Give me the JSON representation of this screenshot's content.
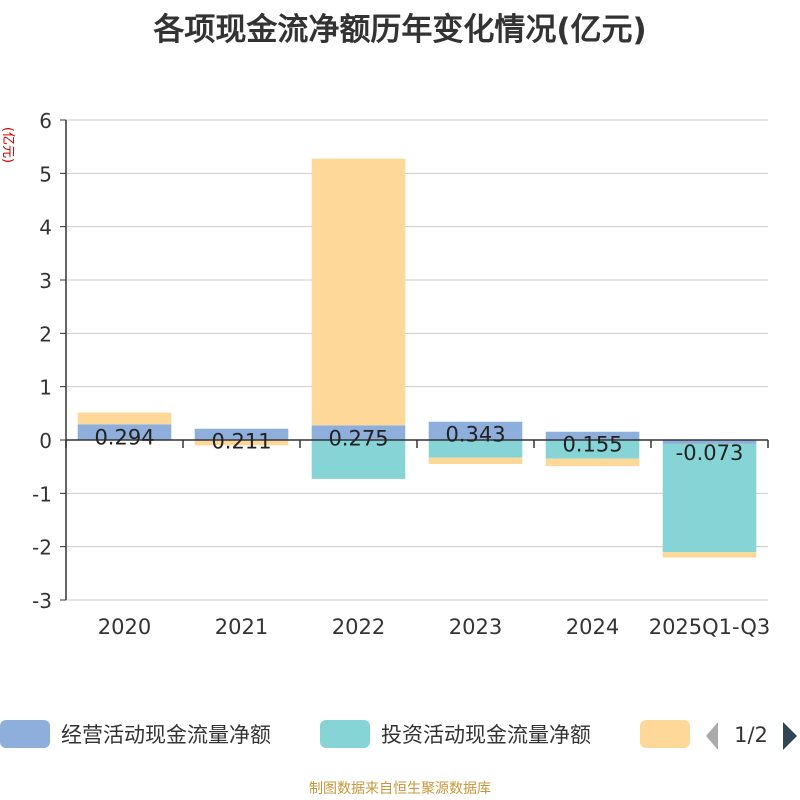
{
  "chart_data": {
    "type": "bar",
    "stacked": true,
    "title": "各项现金流净额历年变化情况(亿元)",
    "ylabel": "(亿元)",
    "xlabel": "",
    "categories": [
      "2020",
      "2021",
      "2022",
      "2023",
      "2024",
      "2025Q1-Q3"
    ],
    "ylim": [
      -3,
      6
    ],
    "yticks": [
      -3,
      -2,
      -1,
      0,
      1,
      2,
      3,
      4,
      5,
      6
    ],
    "grid": true,
    "series": [
      {
        "name": "经营活动现金流量净额",
        "color": "#8eaedb",
        "values": [
          0.294,
          0.211,
          0.275,
          0.343,
          0.155,
          -0.073
        ],
        "labels": [
          "0.294",
          "0.211",
          "0.275",
          "0.343",
          "0.155",
          "-0.073"
        ]
      },
      {
        "name": "投资活动现金流量净额",
        "color": "#87d4d6",
        "values": [
          0.0,
          0.0,
          -0.73,
          -0.33,
          -0.35,
          -2.03
        ]
      },
      {
        "name": "",
        "color": "#fdd899",
        "values": [
          0.22,
          -0.1,
          5.0,
          -0.12,
          -0.14,
          -0.1
        ]
      }
    ],
    "legend": {
      "position": "bottom",
      "page": "1/2"
    }
  },
  "footer": "制图数据来自恒生聚源数据库"
}
